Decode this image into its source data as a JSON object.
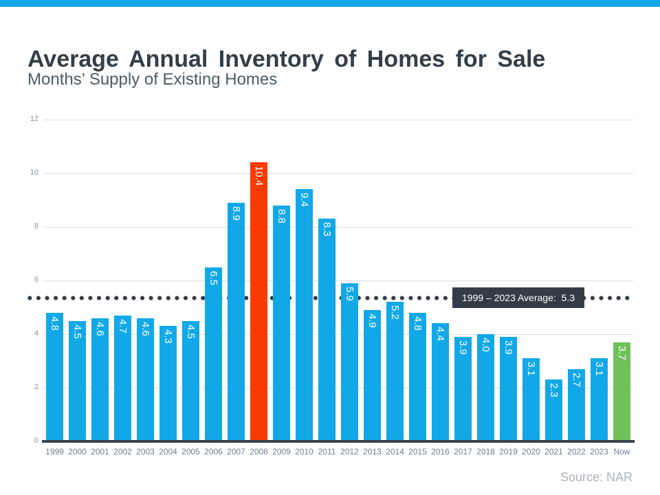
{
  "page": {
    "title": "Average Annual Inventory of Homes for Sale",
    "subtitle": "Months’ Supply of Existing Homes",
    "source": "Source: NAR",
    "accent_strip_color": "#12A8E8"
  },
  "chart_data": {
    "type": "bar",
    "title": "Average Annual Inventory of Homes for Sale",
    "subtitle": "Months’ Supply of Existing Homes",
    "categories": [
      "1999",
      "2000",
      "2001",
      "2002",
      "2003",
      "2004",
      "2005",
      "2006",
      "2007",
      "2008",
      "2009",
      "2010",
      "2011",
      "2012",
      "2013",
      "2014",
      "2015",
      "2016",
      "2017",
      "2018",
      "2019",
      "2020",
      "2021",
      "2022",
      "2023",
      "Now"
    ],
    "values": [
      4.8,
      4.5,
      4.6,
      4.7,
      4.6,
      4.3,
      4.5,
      6.5,
      8.9,
      10.4,
      8.8,
      9.4,
      8.3,
      5.9,
      4.9,
      5.2,
      4.8,
      4.4,
      3.9,
      4.0,
      3.9,
      3.1,
      2.3,
      2.7,
      3.1,
      3.7
    ],
    "value_label_decimals": 1,
    "bar_color": "#12A8E8",
    "highlight_colors": {
      "2008": "#FA3A05",
      "Now": "#6FC25A"
    },
    "ylim": [
      0,
      12
    ],
    "yticks": [
      0,
      2,
      4,
      6,
      8,
      10,
      12
    ],
    "grid": true,
    "legend": "none",
    "average_line": {
      "value": 5.3,
      "label": "1999 – 2023 Average:  5.3",
      "style": "dotted",
      "color": "#333C46"
    },
    "source": "Source: NAR"
  }
}
